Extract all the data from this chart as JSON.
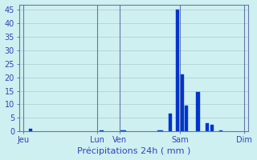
{
  "xlabel": "Précipitations 24h ( mm )",
  "background_color": "#cef0f0",
  "bar_color": "#0033cc",
  "bar_edge_color": "#0044dd",
  "grid_color": "#aacccc",
  "text_color": "#3344bb",
  "ylim": [
    0,
    47
  ],
  "yticks": [
    0,
    5,
    10,
    15,
    20,
    25,
    30,
    35,
    40,
    45
  ],
  "day_labels": [
    "Jeu",
    "Lun",
    "Ven",
    "Sam",
    "Dim"
  ],
  "day_ticks": [
    0,
    32,
    42,
    68,
    96
  ],
  "xlim": [
    -2,
    98
  ],
  "bar_data": [
    [
      3,
      1.0
    ],
    [
      34,
      0.3
    ],
    [
      43,
      0.5
    ],
    [
      44,
      0.5
    ],
    [
      59,
      0.3
    ],
    [
      60,
      0.3
    ],
    [
      64,
      6.5
    ],
    [
      67,
      45.0
    ],
    [
      69,
      21.0
    ],
    [
      71,
      9.5
    ],
    [
      76,
      14.5
    ],
    [
      80,
      3.0
    ],
    [
      82,
      2.5
    ],
    [
      86,
      0.5
    ]
  ],
  "bar_width": 1.5,
  "xlabel_fontsize": 8,
  "tick_fontsize": 7
}
